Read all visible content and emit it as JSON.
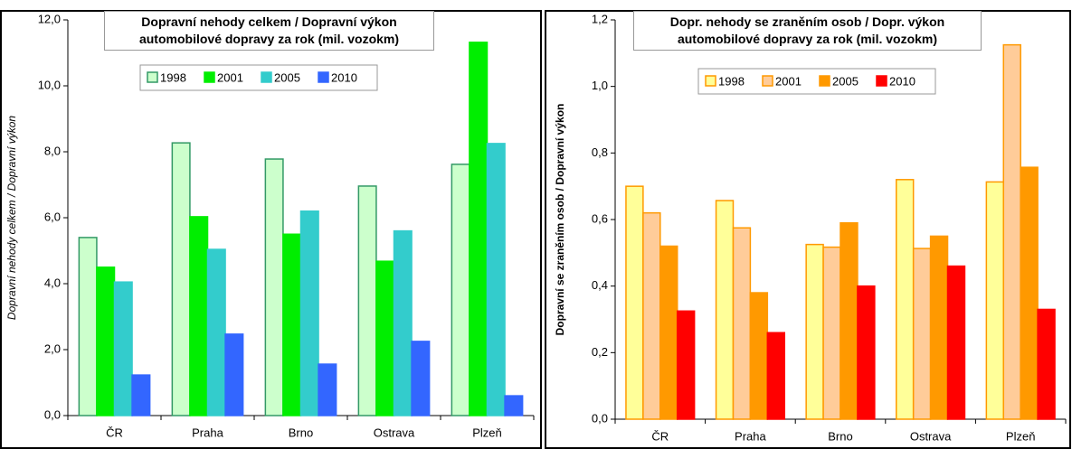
{
  "chart_data": [
    {
      "type": "bar",
      "title": "Dopravní nehody celkem / Dopravní výkon automobilové dopravy za rok (mil. vozokm)",
      "y_label": "Dopravní nehody celkem / Dopravní výkon",
      "categories": [
        "ČR",
        "Praha",
        "Brno",
        "Ostrava",
        "Plzeň"
      ],
      "series": [
        {
          "name": "1998",
          "color": "#ccffcc",
          "edgecolor": "#339966",
          "values": [
            5.4,
            8.27,
            7.78,
            6.96,
            7.62
          ]
        },
        {
          "name": "2001",
          "color": "#00ee00",
          "edgecolor": "#00ee00",
          "values": [
            4.5,
            6.03,
            5.5,
            4.68,
            11.32
          ]
        },
        {
          "name": "2005",
          "color": "#33cccc",
          "edgecolor": "#33cccc",
          "values": [
            4.05,
            5.04,
            6.2,
            5.6,
            8.25
          ]
        },
        {
          "name": "2010",
          "color": "#3366ff",
          "edgecolor": "#3366ff",
          "values": [
            1.23,
            2.47,
            1.56,
            2.25,
            0.6
          ]
        }
      ],
      "ylim": [
        0,
        12
      ],
      "yticks": [
        {
          "value": 0,
          "label": "0,0"
        },
        {
          "value": 2,
          "label": "2,0"
        },
        {
          "value": 4,
          "label": "4,0"
        },
        {
          "value": 6,
          "label": "6,0"
        },
        {
          "value": 8,
          "label": "8,0"
        },
        {
          "value": 10,
          "label": "10,0"
        },
        {
          "value": 12,
          "label": "12,0"
        }
      ],
      "y_label_style": "italic",
      "grid": false
    },
    {
      "type": "bar",
      "title": "Dopr. nehody se zraněním osob / Dopr. výkon automobilové dopravy za rok (mil. vozokm)",
      "y_label": "Dopravní se zraněním osob / Dopravní výkon",
      "categories": [
        "ČR",
        "Praha",
        "Brno",
        "Ostrava",
        "Plzeň"
      ],
      "series": [
        {
          "name": "1998",
          "color": "#ffff99",
          "edgecolor": "#ff9900",
          "values": [
            0.7,
            0.657,
            0.525,
            0.72,
            0.713
          ]
        },
        {
          "name": "2001",
          "color": "#ffcc99",
          "edgecolor": "#ff9900",
          "values": [
            0.62,
            0.575,
            0.517,
            0.513,
            1.125
          ]
        },
        {
          "name": "2005",
          "color": "#ff9900",
          "edgecolor": "#ff9900",
          "values": [
            0.52,
            0.38,
            0.59,
            0.55,
            0.757
          ]
        },
        {
          "name": "2010",
          "color": "#ff0000",
          "edgecolor": "#ff0000",
          "values": [
            0.325,
            0.26,
            0.4,
            0.46,
            0.33
          ]
        }
      ],
      "ylim": [
        0,
        1.2
      ],
      "yticks": [
        {
          "value": 0,
          "label": "0,0"
        },
        {
          "value": 0.2,
          "label": "0,2"
        },
        {
          "value": 0.4,
          "label": "0,4"
        },
        {
          "value": 0.6,
          "label": "0,6"
        },
        {
          "value": 0.8,
          "label": "0,8"
        },
        {
          "value": 1,
          "label": "1,0"
        },
        {
          "value": 1.2,
          "label": "1,2"
        }
      ],
      "y_label_style": "bold",
      "grid": false
    }
  ]
}
